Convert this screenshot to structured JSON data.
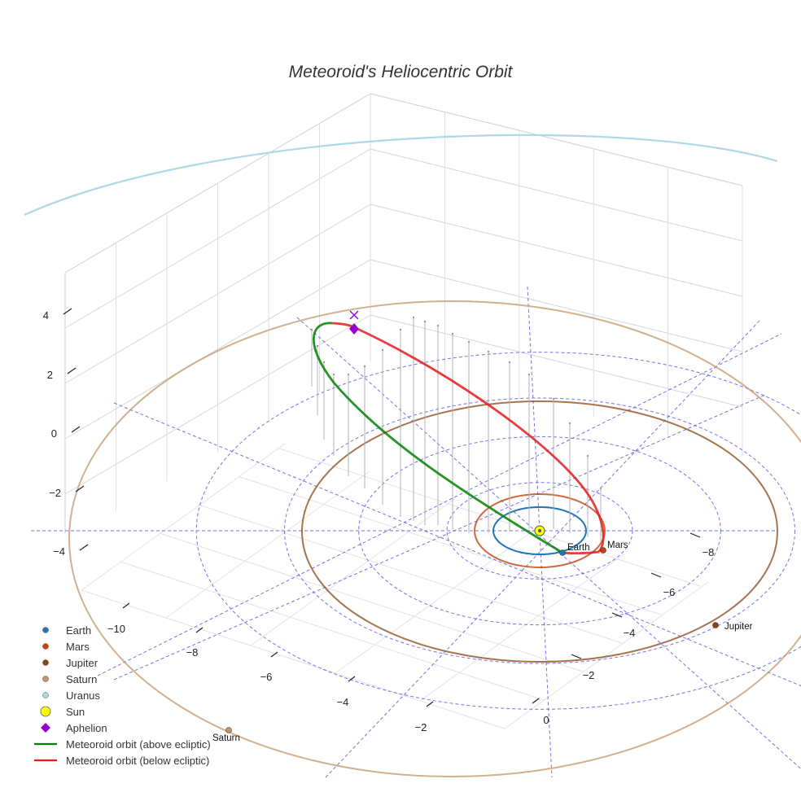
{
  "chart_data": {
    "type": "line3d",
    "title": "Meteoroid's Heliocentric Orbit",
    "z_ticks": [
      "4",
      "2",
      "0",
      "−2",
      "−4"
    ],
    "x_ticks": [
      "−10",
      "−8",
      "−6",
      "−4",
      "−2",
      "0"
    ],
    "y_ticks": [
      "−8",
      "−6",
      "−4",
      "−2"
    ],
    "bodies": [
      {
        "name": "Earth",
        "label": "Earth",
        "a_au": 1.0,
        "color": "#1f77b4"
      },
      {
        "name": "Mars",
        "label": "Mars",
        "a_au": 1.52,
        "color": "#c1440e"
      },
      {
        "name": "Jupiter",
        "label": "Jupiter",
        "a_au": 5.2,
        "color": "#8b4513"
      },
      {
        "name": "Saturn",
        "label": "Saturn",
        "a_au": 9.54,
        "color": "#c2966b"
      },
      {
        "name": "Uranus",
        "label": "",
        "a_au": 19.2,
        "color": "#add8e6"
      }
    ],
    "sun": {
      "name": "Sun",
      "color": "#ffff00"
    },
    "aphelion": {
      "name": "Aphelion",
      "color": "#9400d3"
    },
    "meteoroid_orbit": {
      "above_ecliptic": {
        "name": "Meteoroid orbit (above ecliptic)",
        "color": "#008000"
      },
      "below_ecliptic": {
        "name": "Meteoroid orbit (below ecliptic)",
        "color": "#e41a1c"
      }
    },
    "legend": [
      {
        "label": "Earth",
        "marker": "dot",
        "color": "#1f77b4"
      },
      {
        "label": "Mars",
        "marker": "dot",
        "color": "#c1440e"
      },
      {
        "label": "Jupiter",
        "marker": "dot",
        "color": "#8b4513"
      },
      {
        "label": "Saturn",
        "marker": "dot",
        "color": "#c2966b"
      },
      {
        "label": "Uranus",
        "marker": "dot",
        "color": "#add8e6"
      },
      {
        "label": "Sun",
        "marker": "sun",
        "color": "#ffff00"
      },
      {
        "label": "Aphelion",
        "marker": "diamond",
        "color": "#9400d3"
      },
      {
        "label": "Meteoroid orbit (above ecliptic)",
        "marker": "line",
        "color": "#008000"
      },
      {
        "label": "Meteoroid orbit (below ecliptic)",
        "marker": "line",
        "color": "#e41a1c"
      }
    ]
  }
}
